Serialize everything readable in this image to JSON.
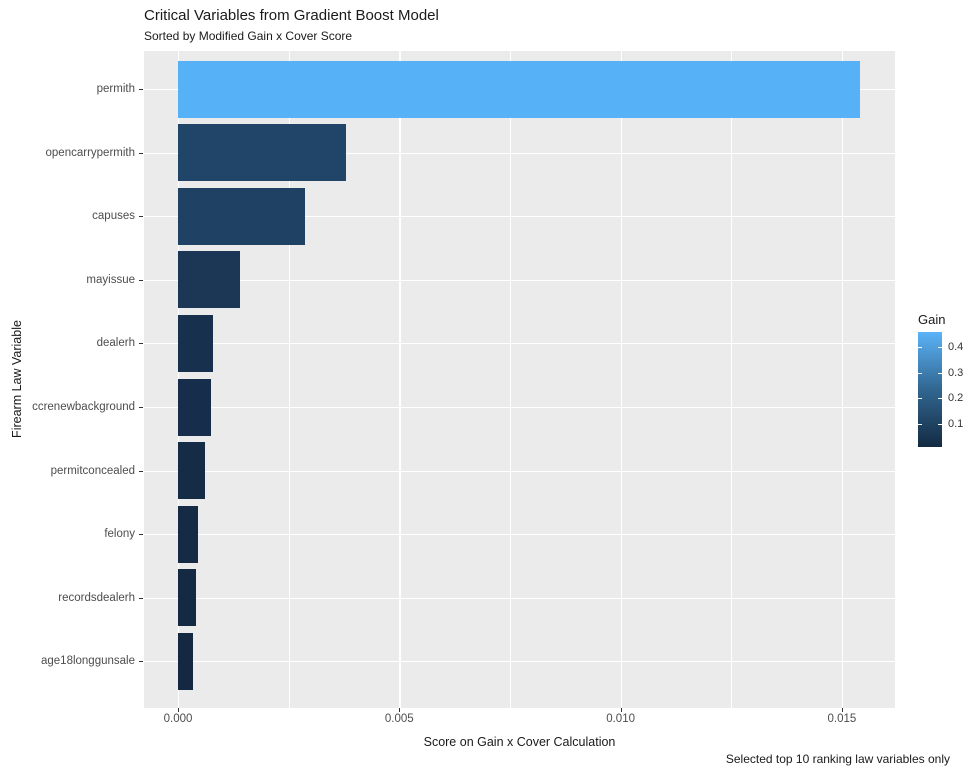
{
  "title": "Critical Variables from Gradient Boost Model",
  "subtitle": "Sorted by Modified Gain x Cover Score",
  "caption": "Selected top 10 ranking law variables only",
  "xlabel": "Score on Gain x Cover Calculation",
  "ylabel": "Firearm Law Variable",
  "legend": {
    "title": "Gain",
    "tick_labels": [
      "0.4",
      "0.3",
      "0.2",
      "0.1"
    ],
    "gradient_top": "#5BB3F8",
    "gradient_mid": "#316690",
    "gradient_bottom": "#132B43"
  },
  "colors": {
    "panel_bg": "#EBEBEB",
    "grid": "#FFFFFF",
    "axis_text": "#4D4D4D",
    "text": "#1A1A1A"
  },
  "chart_data": {
    "type": "bar",
    "orientation": "horizontal",
    "title": "Critical Variables from Gradient Boost Model",
    "subtitle": "Sorted by Modified Gain x Cover Score",
    "caption": "Selected top 10 ranking law variables only",
    "xlabel": "Score on Gain x Cover Calculation",
    "ylabel": "Firearm Law Variable",
    "categories": [
      "permith",
      "opencarrypermith",
      "capuses",
      "mayissue",
      "dealerh",
      "ccrenewbackground",
      "permitconcealed",
      "felony",
      "recordsdealerh",
      "age18longgunsale"
    ],
    "values": [
      0.0154,
      0.0038,
      0.00287,
      0.0014,
      0.0008,
      0.00075,
      0.0006,
      0.00046,
      0.0004,
      0.00034
    ],
    "bar_colors": [
      "#56B1F7",
      "#204569",
      "#1F4164",
      "#1B3755",
      "#17304D",
      "#162E4B",
      "#152C47",
      "#152B45",
      "#142A43",
      "#142941"
    ],
    "color_scale": {
      "name": "Gain",
      "low_color": "#132B43",
      "high_color": "#56B1F7",
      "tick_values": [
        0.4,
        0.3,
        0.2,
        0.1
      ]
    },
    "x_ticks": [
      0,
      0.005,
      0.01,
      0.015
    ],
    "x_tick_labels": [
      "0.000",
      "0.005",
      "0.010",
      "0.015"
    ],
    "xlim": [
      -0.00077,
      0.01622
    ],
    "grid": true,
    "legend_position": "right"
  }
}
